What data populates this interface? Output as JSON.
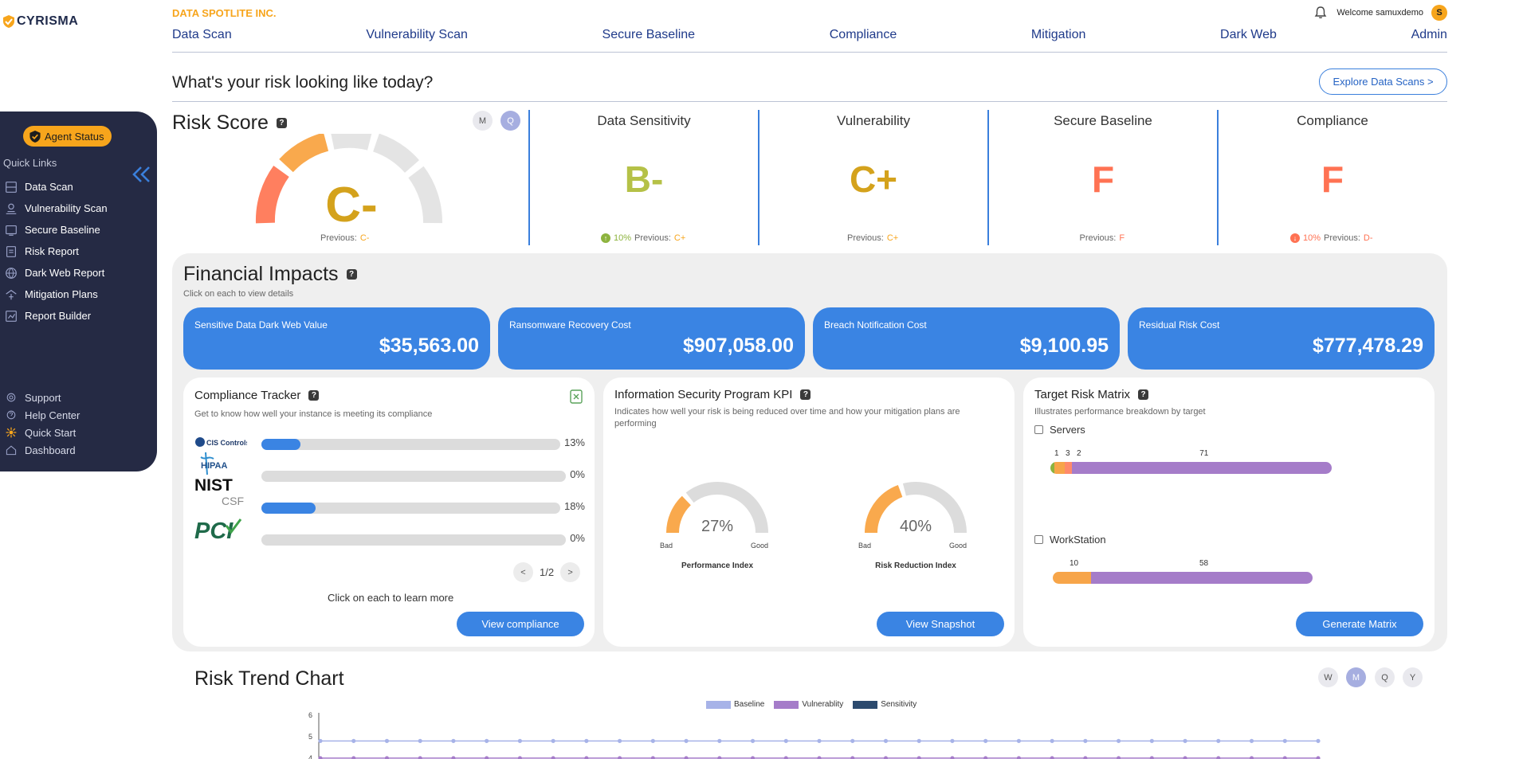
{
  "app": {
    "logo_text": "CYRISMA",
    "company": "DATA SPOTLITE INC."
  },
  "user": {
    "welcome": "Welcome samuxdemo",
    "avatar_initial": "S"
  },
  "nav": [
    "Data Scan",
    "Vulnerability Scan",
    "Secure Baseline",
    "Compliance",
    "Mitigation",
    "Dark Web",
    "Admin"
  ],
  "page": {
    "question": "What's your risk looking like today?",
    "explore_button": "Explore Data Scans >"
  },
  "sidebar": {
    "agent_status": "Agent Status",
    "quick_links_title": "Quick Links",
    "quick_links": [
      {
        "label": "Data Scan",
        "icon": "data-scan-icon"
      },
      {
        "label": "Vulnerability Scan",
        "icon": "vulnerability-scan-icon"
      },
      {
        "label": "Secure Baseline",
        "icon": "secure-baseline-icon"
      },
      {
        "label": "Risk Report",
        "icon": "risk-report-icon"
      },
      {
        "label": "Dark Web Report",
        "icon": "globe-icon"
      },
      {
        "label": "Mitigation Plans",
        "icon": "mitigation-icon"
      },
      {
        "label": "Report Builder",
        "icon": "report-builder-icon"
      }
    ],
    "bottom_links": [
      {
        "label": "Support",
        "icon": "support-icon"
      },
      {
        "label": "Help Center",
        "icon": "help-icon"
      },
      {
        "label": "Quick Start",
        "icon": "quick-start-icon"
      },
      {
        "label": "Dashboard",
        "icon": "home-icon"
      }
    ]
  },
  "risk_score": {
    "title": "Risk Score",
    "toggles": [
      "M",
      "Q"
    ],
    "active_toggle": "Q",
    "grade": "C-",
    "previous_label": "Previous:",
    "previous": "C-"
  },
  "grades": [
    {
      "title": "Data Sensitivity",
      "grade": "B-",
      "grade_color": "#b5c147",
      "change": "10%",
      "direction": "up",
      "previous": "C+"
    },
    {
      "title": "Vulnerability",
      "grade": "C+",
      "grade_color": "#d4a21c",
      "change": "",
      "direction": "",
      "previous": "C+"
    },
    {
      "title": "Secure Baseline",
      "grade": "F",
      "grade_color": "#ff7253",
      "change": "",
      "direction": "",
      "previous": "F"
    },
    {
      "title": "Compliance",
      "grade": "F",
      "grade_color": "#ff7253",
      "change": "10%",
      "direction": "down",
      "previous": "D-"
    }
  ],
  "financial": {
    "title": "Financial Impacts",
    "subtitle": "Click on each to view details",
    "cards": [
      {
        "label": "Sensitive Data Dark Web Value",
        "value": "$35,563.00"
      },
      {
        "label": "Ransomware Recovery Cost",
        "value": "$907,058.00"
      },
      {
        "label": "Breach Notification Cost",
        "value": "$9,100.95"
      },
      {
        "label": "Residual Risk Cost",
        "value": "$777,478.29"
      }
    ]
  },
  "compliance_tracker": {
    "title": "Compliance Tracker",
    "subtitle": "Get to know how well your instance is meeting its compliance",
    "rows": [
      {
        "framework": "CIS Controls",
        "percent_label": "13%",
        "fraction": 0.13
      },
      {
        "framework": "HIPAA",
        "percent_label": "0%",
        "fraction": 0
      },
      {
        "framework": "NIST CSF",
        "percent_label": "18%",
        "fraction": 0.18
      },
      {
        "framework": "PCI",
        "percent_label": "0%",
        "fraction": 0
      }
    ],
    "page": "1/2",
    "hint": "Click on each to learn more",
    "button": "View compliance"
  },
  "kpi": {
    "title": "Information Security Program KPI",
    "subtitle": "Indicates how well your risk is being reduced over time and how your mitigation plans are performing",
    "gauges": [
      {
        "name": "Performance Index",
        "value": "27%",
        "fraction": 0.27
      },
      {
        "name": "Risk Reduction Index",
        "value": "40%",
        "fraction": 0.4
      }
    ],
    "bad_label": "Bad",
    "good_label": "Good",
    "button": "View Snapshot"
  },
  "target_matrix": {
    "title": "Target Risk Matrix",
    "subtitle": "Illustrates performance breakdown by target",
    "groups": [
      {
        "name": "Servers",
        "segments": [
          {
            "count": 1,
            "color": "#8db33e"
          },
          {
            "count": 3,
            "color": "#f7a549"
          },
          {
            "count": 2,
            "color": "#ff8a6a"
          },
          {
            "count": 71,
            "color": "#a57cc9"
          }
        ]
      },
      {
        "name": "WorkStation",
        "segments": [
          {
            "count": 10,
            "color": "#f7a549"
          },
          {
            "count": 58,
            "color": "#a57cc9"
          }
        ]
      }
    ],
    "button": "Generate Matrix"
  },
  "trend": {
    "title": "Risk Trend Chart",
    "toggles": [
      "W",
      "M",
      "Q",
      "Y"
    ],
    "active_toggle": "M"
  },
  "chart_data": {
    "type": "line",
    "title": "Risk Trend Chart",
    "ylabel": "",
    "y_ticks": [
      6,
      5,
      4
    ],
    "series": [
      {
        "name": "Baseline",
        "color": "#a7b3e8",
        "values": [
          4.8,
          4.8,
          4.8,
          4.8,
          4.8,
          4.8,
          4.8,
          4.8,
          4.8,
          4.8,
          4.8,
          4.8,
          4.8,
          4.8,
          4.8,
          4.8,
          4.8,
          4.8,
          4.8,
          4.8,
          4.8,
          4.8,
          4.8,
          4.8,
          4.8,
          4.8,
          4.8,
          4.8,
          4.8,
          4.8,
          4.8
        ]
      },
      {
        "name": "Vulnerablity",
        "color": "#a57cc9",
        "values": [
          4.0,
          4.0,
          4.0,
          4.0,
          4.0,
          4.0,
          4.0,
          4.0,
          4.0,
          4.0,
          4.0,
          4.0,
          4.0,
          4.0,
          4.0,
          4.0,
          4.0,
          4.0,
          4.0,
          4.0,
          4.0,
          4.0,
          4.0,
          4.0,
          4.0,
          4.0,
          4.0,
          4.0,
          4.0,
          4.0,
          4.0
        ]
      },
      {
        "name": "Sensitivity",
        "color": "#2c4a6e",
        "values": []
      }
    ]
  }
}
